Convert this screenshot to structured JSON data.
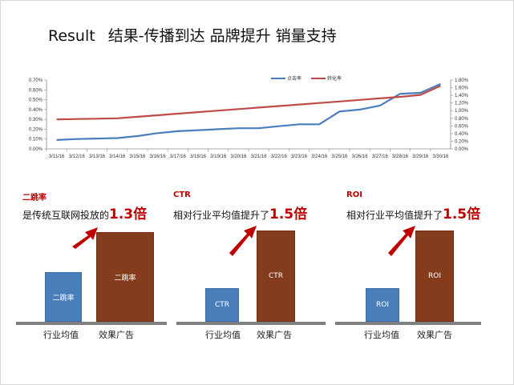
{
  "slide": {
    "title_en": "Result",
    "title_cn": "结果-传播到达 品牌提升 销量支持"
  },
  "chart_data": {
    "type": "line",
    "title": "",
    "x": [
      "3/11/16",
      "3/12/16",
      "3/13/16",
      "3/14/16",
      "3/15/16",
      "3/16/16",
      "3/17/16",
      "3/18/16",
      "3/19/16",
      "3/20/16",
      "3/21/16",
      "3/22/16",
      "3/23/16",
      "3/24/16",
      "3/25/16",
      "3/26/16",
      "3/27/16",
      "3/28/16",
      "3/29/16",
      "3/30/16"
    ],
    "series": [
      {
        "name": "点击率",
        "axis": "left",
        "color": "#4a7ebb",
        "values": [
          0.09,
          0.1,
          0.105,
          0.11,
          0.13,
          0.16,
          0.18,
          0.19,
          0.2,
          0.21,
          0.21,
          0.23,
          0.25,
          0.25,
          0.38,
          0.4,
          0.44,
          0.56,
          0.57,
          0.66
        ]
      },
      {
        "name": "转化率",
        "axis": "right",
        "color": "#be4b48",
        "values": [
          0.77,
          0.78,
          0.79,
          0.8,
          0.84,
          0.88,
          0.92,
          0.96,
          1.0,
          1.04,
          1.08,
          1.12,
          1.16,
          1.2,
          1.24,
          1.28,
          1.32,
          1.36,
          1.41,
          1.65
        ]
      }
    ],
    "y_left": {
      "ylim": [
        0,
        0.7
      ],
      "ticks": [
        "0.00%",
        "0.10%",
        "0.20%",
        "0.30%",
        "0.40%",
        "0.50%",
        "0.60%",
        "0.70%"
      ]
    },
    "y_right": {
      "ylim": [
        0,
        1.8
      ],
      "ticks": [
        "0.00%",
        "0.20%",
        "0.40%",
        "0.60%",
        "0.80%",
        "1.00%",
        "1.20%",
        "1.40%",
        "1.60%",
        "1.80%"
      ]
    },
    "legend_position": "top-right",
    "grid": false
  },
  "panels": [
    {
      "heading": "二跳率",
      "statement": "是传统互联网投放的",
      "multiplier": "1.3倍",
      "avg_bar_label": "二跳率",
      "ad_bar_label": "二跳率",
      "avg_category": "行业均值",
      "ad_category": "效果广告",
      "avg_value": 1.0,
      "ad_value": 1.3
    },
    {
      "heading": "CTR",
      "statement": "相对行业平均值提升了",
      "multiplier": "1.5倍",
      "avg_bar_label": "CTR",
      "ad_bar_label": "CTR",
      "avg_category": "行业均值",
      "ad_category": "效果广告",
      "avg_value": 1.0,
      "ad_value": 2.6
    },
    {
      "heading": "ROI",
      "statement": "相对行业平均值提升了",
      "multiplier": "1.5倍",
      "avg_bar_label": "ROI",
      "ad_bar_label": "ROI",
      "avg_category": "行业均值",
      "ad_category": "效果广告",
      "avg_value": 1.0,
      "ad_value": 2.6
    }
  ],
  "colors": {
    "accent_red": "#c00000",
    "avg_bar": "#4a7ebb",
    "ad_bar": "#843c1c"
  }
}
